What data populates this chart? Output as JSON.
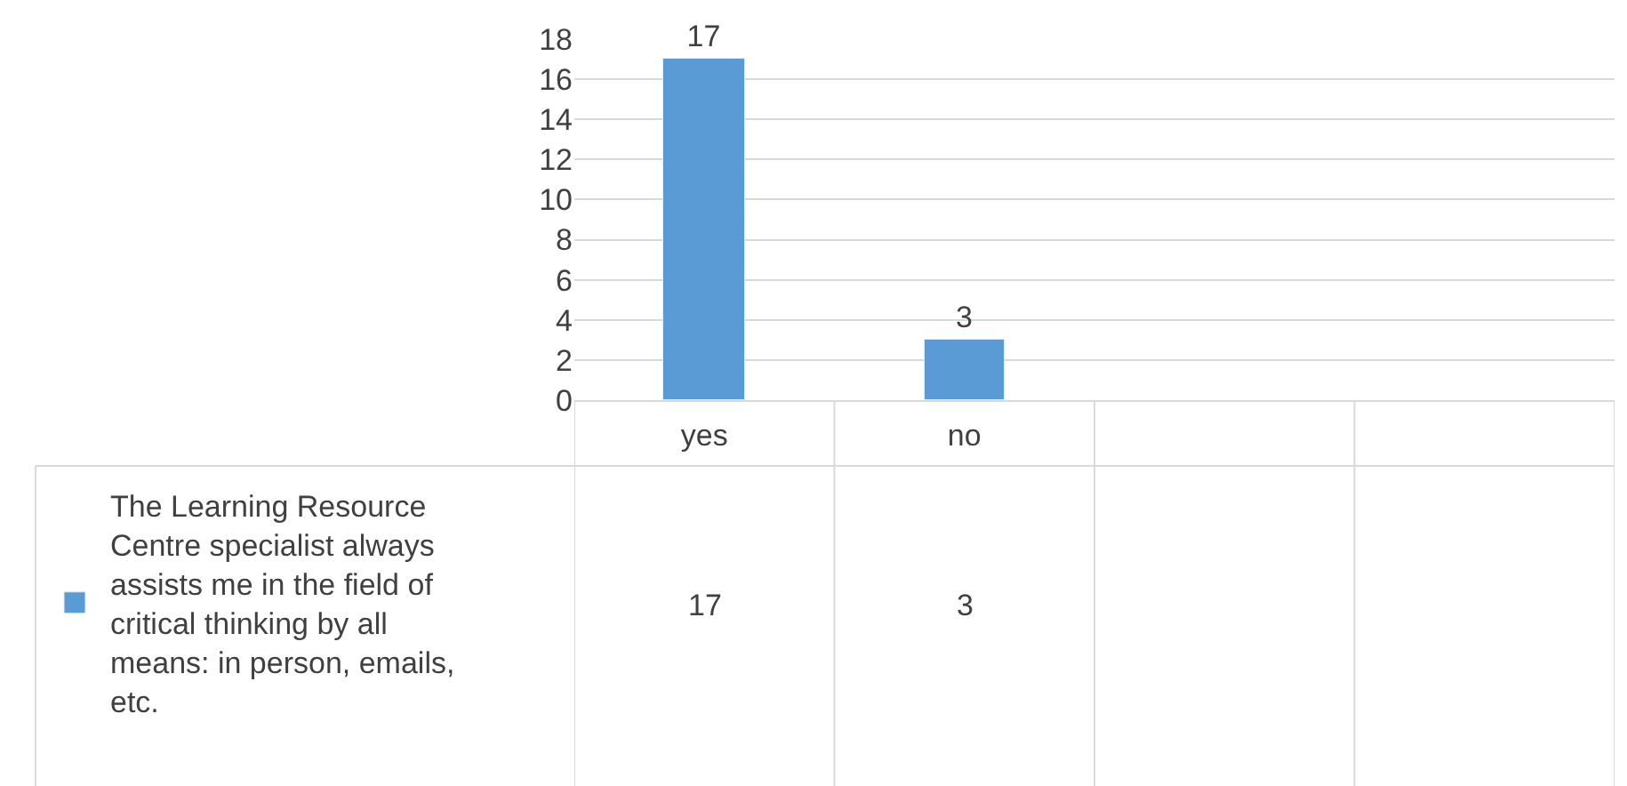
{
  "chart_data": {
    "type": "bar",
    "categories": [
      "yes",
      "no",
      null,
      null
    ],
    "series": [
      {
        "name": "The Learning Resource Centre specialist always assists me in the field of critical thinking by all means: in person, emails, etc.",
        "color": "#5b9bd5",
        "values": [
          17,
          3,
          null,
          null
        ],
        "value_labels": [
          "17",
          "3",
          null,
          null
        ]
      }
    ],
    "ylim": [
      0,
      18
    ],
    "yticks": [
      0,
      2,
      4,
      6,
      8,
      10,
      12,
      14,
      16,
      18
    ],
    "annotations": [
      "17",
      "3"
    ],
    "grid": "y",
    "legend": "bottom left"
  }
}
